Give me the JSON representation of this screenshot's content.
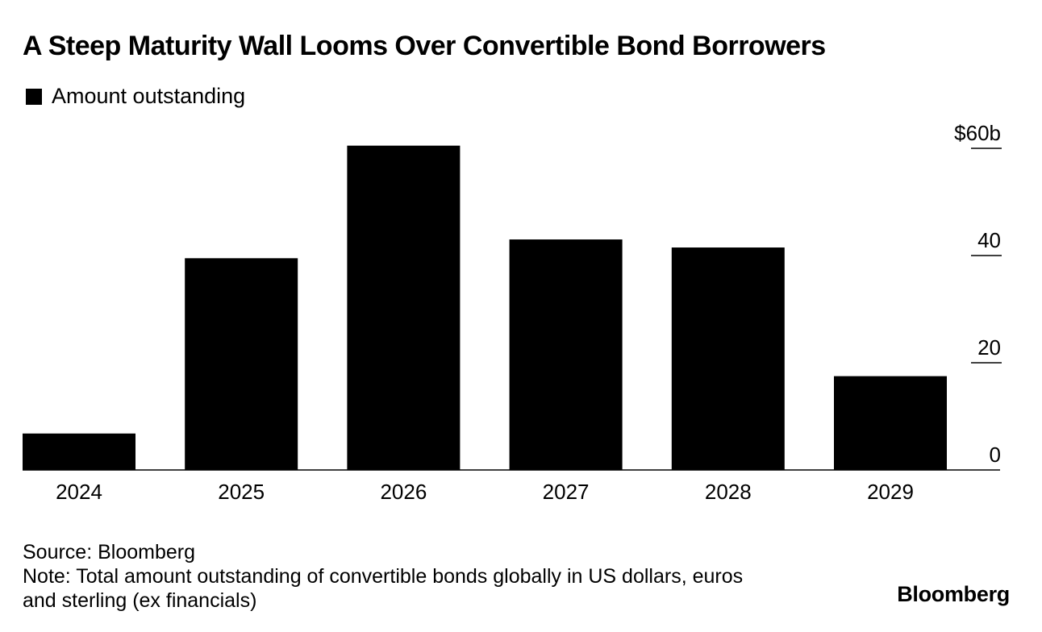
{
  "title": "A Steep Maturity Wall Looms Over Convertible Bond Borrowers",
  "legend": {
    "label": "Amount outstanding",
    "color": "#000000"
  },
  "footer": {
    "source": "Source: Bloomberg",
    "note_line1": "Note: Total amount outstanding of convertible bonds globally in US dollars, euros",
    "note_line2": "and sterling (ex financials)"
  },
  "brand": "Bloomberg",
  "chart_data": {
    "type": "bar",
    "title": "A Steep Maturity Wall Looms Over Convertible Bond Borrowers",
    "categories": [
      "2024",
      "2025",
      "2026",
      "2027",
      "2028",
      "2029"
    ],
    "series": [
      {
        "name": "Amount outstanding",
        "values": [
          6.8,
          39.5,
          60.5,
          43,
          41.5,
          17.5
        ]
      }
    ],
    "xlabel": "",
    "ylabel": "",
    "ylim": [
      0,
      60
    ],
    "yticks": [
      0,
      20,
      40,
      60
    ],
    "ytick_labels": [
      "0",
      "20",
      "40",
      "$60b"
    ],
    "y_axis_position": "right",
    "grid": false,
    "bar_color": "#000000"
  }
}
